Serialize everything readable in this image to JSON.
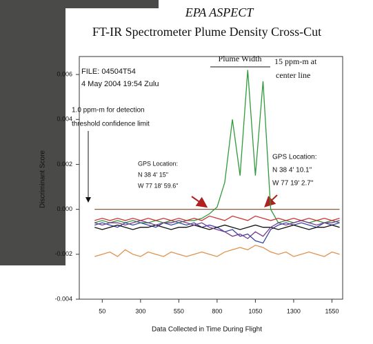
{
  "chart_data": {
    "type": "line",
    "title": "EPA ASPECT",
    "subtitle": "FT-IR Spectrometer Plume Density Cross-Cut",
    "x_label": "Data Collected in Time During Flight",
    "y_label": "Discriminant Score",
    "x": [
      0,
      50,
      100,
      150,
      200,
      250,
      300,
      350,
      400,
      450,
      500,
      550,
      600,
      650,
      700,
      750,
      800,
      850,
      900,
      950,
      1000,
      1050,
      1100,
      1150,
      1200,
      1250,
      1300,
      1350,
      1400,
      1450,
      1500,
      1550,
      1600
    ],
    "xlim": [
      -100,
      1620
    ],
    "xticks": [
      50,
      300,
      550,
      800,
      1050,
      1300,
      1550
    ],
    "ylim": [
      -0.004,
      0.0068
    ],
    "yticks": [
      0.006,
      0.004,
      0.002,
      {
        "value": 0,
        "label": "0.000"
      },
      -0.002,
      -0.004
    ],
    "series": [
      {
        "color": "#8b5a3c",
        "values": [
          0,
          0,
          0,
          0,
          0,
          0,
          0,
          0,
          0,
          0,
          0,
          0,
          0,
          0,
          0,
          0,
          0,
          0,
          0,
          0,
          0,
          0,
          0,
          0,
          0,
          0,
          0,
          0,
          0,
          0,
          0,
          0,
          0
        ]
      },
      {
        "color": "#2e9a3a",
        "values": [
          -0.0006,
          -0.0005,
          -0.0006,
          -0.0005,
          -0.0006,
          -0.0005,
          -0.0006,
          -0.0006,
          -0.0005,
          -0.0006,
          -0.0005,
          -0.0006,
          -0.0005,
          -0.0005,
          -0.0004,
          -0.0002,
          0.0001,
          0.0012,
          0.004,
          0.0015,
          0.0062,
          0.0015,
          0.0057,
          0.0,
          -0.0006,
          -0.0005,
          -0.0006,
          -0.0005,
          -0.0006,
          -0.0005,
          -0.0006,
          -0.0005,
          -0.0006
        ]
      },
      {
        "color": "#3344aa",
        "values": [
          -0.0007,
          -0.0006,
          -0.0007,
          -0.0008,
          -0.0006,
          -0.0007,
          -0.0006,
          -0.0007,
          -0.0008,
          -0.0006,
          -0.0007,
          -0.0006,
          -0.0007,
          -0.0006,
          -0.0008,
          -0.0007,
          -0.0008,
          -0.001,
          -0.0009,
          -0.0012,
          -0.0011,
          -0.0014,
          -0.0015,
          -0.0009,
          -0.0007,
          -0.0006,
          -0.0007,
          -0.0006,
          -0.0007,
          -0.0008,
          -0.0006,
          -0.0007,
          -0.0006
        ]
      },
      {
        "color": "#cc3333",
        "values": [
          -0.0005,
          -0.0004,
          -0.0005,
          -0.0004,
          -0.0005,
          -0.0004,
          -0.0005,
          -0.0004,
          -0.0005,
          -0.0004,
          -0.0005,
          -0.0004,
          -0.0005,
          -0.0004,
          -0.0005,
          -0.0003,
          -0.0004,
          -0.0005,
          -0.0003,
          -0.0004,
          -0.0005,
          -0.0003,
          -0.0004,
          -0.0005,
          -0.0004,
          -0.0005,
          -0.0004,
          -0.0005,
          -0.0004,
          -0.0005,
          -0.0004,
          -0.0005,
          -0.0004
        ]
      },
      {
        "color": "#111111",
        "values": [
          -0.0008,
          -0.0009,
          -0.0008,
          -0.0007,
          -0.0008,
          -0.0009,
          -0.0008,
          -0.0008,
          -0.0007,
          -0.0008,
          -0.0009,
          -0.0008,
          -0.0008,
          -0.0007,
          -0.0008,
          -0.0009,
          -0.0008,
          -0.0007,
          -0.0008,
          -0.0009,
          -0.0008,
          -0.0007,
          -0.0008,
          -0.0008,
          -0.0009,
          -0.0008,
          -0.0007,
          -0.0008,
          -0.0009,
          -0.0008,
          -0.0008,
          -0.0007,
          -0.0008
        ]
      },
      {
        "color": "#7a3a8a",
        "values": [
          -0.0006,
          -0.0007,
          -0.0006,
          -0.0006,
          -0.0007,
          -0.0006,
          -0.0005,
          -0.0006,
          -0.0007,
          -0.0006,
          -0.0006,
          -0.0005,
          -0.0006,
          -0.0007,
          -0.0006,
          -0.0008,
          -0.0009,
          -0.001,
          -0.0012,
          -0.0011,
          -0.0013,
          -0.001,
          -0.0012,
          -0.0008,
          -0.0006,
          -0.0007,
          -0.0006,
          -0.0005,
          -0.0006,
          -0.0007,
          -0.0006,
          -0.0006,
          -0.0005
        ]
      },
      {
        "color": "#e0904a",
        "values": [
          -0.0021,
          -0.002,
          -0.0019,
          -0.0021,
          -0.0018,
          -0.002,
          -0.0021,
          -0.0019,
          -0.002,
          -0.0021,
          -0.0019,
          -0.002,
          -0.0021,
          -0.002,
          -0.0019,
          -0.002,
          -0.0021,
          -0.0019,
          -0.0018,
          -0.0017,
          -0.0018,
          -0.0016,
          -0.0017,
          -0.0019,
          -0.002,
          -0.0019,
          -0.0021,
          -0.002,
          -0.0019,
          -0.002,
          -0.0021,
          -0.0019,
          -0.002
        ]
      }
    ],
    "annotations": [
      "FILE: 04504T54",
      "4 May 2004 19:54 Zulu",
      "1.0 ppm-m for detection",
      "threshold confidence limit",
      "GPS Location:",
      "N 38 4' 15\"",
      "W 77 18' 59.6\"",
      "GPS Location:",
      "N 38 4' 10.1\"",
      "W 77 19' 2.7\"",
      "Plume Width",
      "15 ppm-m at",
      "center line"
    ]
  }
}
